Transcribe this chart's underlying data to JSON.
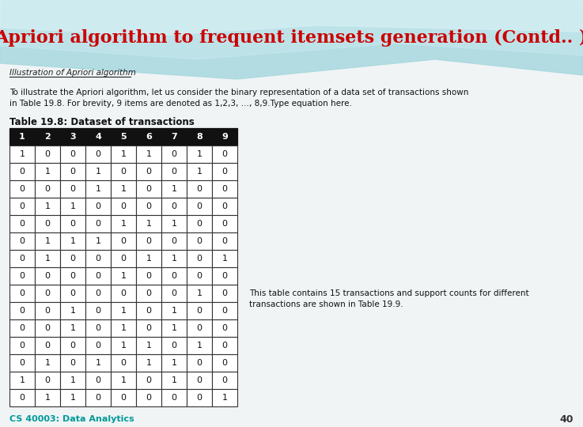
{
  "title": "Apriori algorithm to frequent itemsets generation (Contd.. )",
  "subtitle": "Illustration of Apriori algorithm",
  "body_text_1": "To illustrate the Apriori algorithm, let us consider the binary representation of a data set of transactions shown",
  "body_text_2": "in Table 19.8. For brevity, 9 items are denoted as 1,2,3, …, 8,9.Type equation here.",
  "table_title": "Table 19.8: Dataset of transactions",
  "table_headers": [
    "1",
    "2",
    "3",
    "4",
    "5",
    "6",
    "7",
    "8",
    "9"
  ],
  "table_data": [
    [
      1,
      0,
      0,
      0,
      1,
      1,
      0,
      1,
      0
    ],
    [
      0,
      1,
      0,
      1,
      0,
      0,
      0,
      1,
      0
    ],
    [
      0,
      0,
      0,
      1,
      1,
      0,
      1,
      0,
      0
    ],
    [
      0,
      1,
      1,
      0,
      0,
      0,
      0,
      0,
      0
    ],
    [
      0,
      0,
      0,
      0,
      1,
      1,
      1,
      0,
      0
    ],
    [
      0,
      1,
      1,
      1,
      0,
      0,
      0,
      0,
      0
    ],
    [
      0,
      1,
      0,
      0,
      0,
      1,
      1,
      0,
      1
    ],
    [
      0,
      0,
      0,
      0,
      1,
      0,
      0,
      0,
      0
    ],
    [
      0,
      0,
      0,
      0,
      0,
      0,
      0,
      1,
      0
    ],
    [
      0,
      0,
      1,
      0,
      1,
      0,
      1,
      0,
      0
    ],
    [
      0,
      0,
      1,
      0,
      1,
      0,
      1,
      0,
      0
    ],
    [
      0,
      0,
      0,
      0,
      1,
      1,
      0,
      1,
      0
    ],
    [
      0,
      1,
      0,
      1,
      0,
      1,
      1,
      0,
      0
    ],
    [
      1,
      0,
      1,
      0,
      1,
      0,
      1,
      0,
      0
    ],
    [
      0,
      1,
      1,
      0,
      0,
      0,
      0,
      0,
      1
    ]
  ],
  "side_note_1": "This table contains 15 transactions and support counts for different",
  "side_note_2": "transactions are shown in Table 19.9.",
  "footer": "CS 40003: Data Analytics",
  "footer_color": "#009999",
  "page_num": "40",
  "title_color": "#cc0000",
  "wave_color_1": "#a8d8e0",
  "wave_color_2": "#c8eaf0",
  "bg_color": "#eef6f8"
}
